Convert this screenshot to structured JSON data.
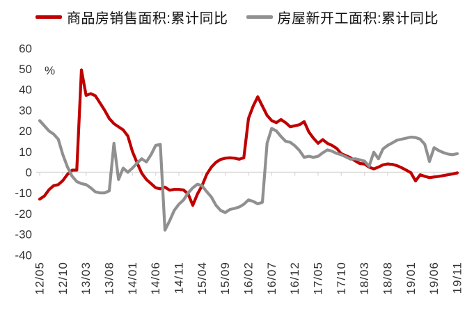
{
  "legend": [
    {
      "label": "商品房销售面积:累计同比",
      "color": "#c00000"
    },
    {
      "label": "房屋新开工面积:累计同比",
      "color": "#909090"
    }
  ],
  "y_axis": {
    "unit": "%",
    "ticks": [
      60,
      50,
      40,
      30,
      20,
      10,
      0,
      -10,
      -20,
      -30,
      -40
    ]
  },
  "x_axis": {
    "tick_labels": [
      "12/05",
      "12/10",
      "13/03",
      "13/08",
      "14/01",
      "14/06",
      "14/11",
      "15/04",
      "15/09",
      "16/02",
      "16/07",
      "16/12",
      "17/05",
      "17/10",
      "18/03",
      "18/08",
      "19/01",
      "19/06",
      "19/11"
    ]
  },
  "style": {
    "axis_line_color": "#d9d9d9",
    "label_color": "#333333",
    "background": "#ffffff"
  },
  "chart_data": {
    "type": "line",
    "title": "",
    "xlabel": "",
    "ylabel": "%",
    "ylim": [
      -40,
      60
    ],
    "grid": "zero-line-only",
    "legend_position": "top",
    "x": [
      "12/05",
      "12/06",
      "12/07",
      "12/08",
      "12/09",
      "12/10",
      "12/11",
      "12/12",
      "13/01",
      "13/02",
      "13/03",
      "13/04",
      "13/05",
      "13/06",
      "13/07",
      "13/08",
      "13/09",
      "13/10",
      "13/11",
      "13/12",
      "14/01",
      "14/02",
      "14/03",
      "14/04",
      "14/05",
      "14/06",
      "14/07",
      "14/08",
      "14/09",
      "14/10",
      "14/11",
      "14/12",
      "15/01",
      "15/02",
      "15/03",
      "15/04",
      "15/05",
      "15/06",
      "15/07",
      "15/08",
      "15/09",
      "15/10",
      "15/11",
      "15/12",
      "16/01",
      "16/02",
      "16/03",
      "16/04",
      "16/05",
      "16/06",
      "16/07",
      "16/08",
      "16/09",
      "16/10",
      "16/11",
      "16/12",
      "17/01",
      "17/02",
      "17/03",
      "17/04",
      "17/05",
      "17/06",
      "17/07",
      "17/08",
      "17/09",
      "17/10",
      "17/11",
      "17/12",
      "18/01",
      "18/02",
      "18/03",
      "18/04",
      "18/05",
      "18/06",
      "18/07",
      "18/08",
      "18/09",
      "18/10",
      "18/11",
      "18/12",
      "19/01",
      "19/02",
      "19/03",
      "19/04",
      "19/05",
      "19/06",
      "19/07",
      "19/08",
      "19/09",
      "19/10",
      "19/11"
    ],
    "series": [
      {
        "name": "商品房销售面积:累计同比",
        "color": "#c00000",
        "values": [
          -13,
          -11.5,
          -8.5,
          -6.5,
          -6,
          -4,
          -1,
          1,
          1,
          49.5,
          37.2,
          38,
          37,
          33.5,
          30,
          26,
          23.5,
          22,
          20.5,
          17.5,
          10,
          4.5,
          -0.5,
          -3.5,
          -5.5,
          -7.5,
          -8,
          -7.2,
          -8.7,
          -8.3,
          -8.3,
          -8.6,
          -10.5,
          -16,
          -10.5,
          -6.5,
          -1,
          2.5,
          4.8,
          6.2,
          6.8,
          7,
          6.8,
          6.3,
          7,
          26,
          32,
          36.5,
          32,
          27.5,
          25,
          24,
          25.5,
          24,
          22,
          22.5,
          23,
          24.5,
          19.5,
          16.5,
          14,
          15.8,
          14,
          13,
          11.5,
          9,
          8,
          7,
          5.5,
          4.2,
          4,
          2.5,
          1.6,
          2.5,
          3.6,
          4,
          3.8,
          3.2,
          2.2,
          1,
          -0.2,
          -4.2,
          -1.2,
          -2,
          -2.6,
          -2.3,
          -2,
          -1.6,
          -1.2,
          -0.8,
          -0.3
        ]
      },
      {
        "name": "房屋新开工面积:累计同比",
        "color": "#909090",
        "values": [
          25,
          22.5,
          20,
          18.5,
          16,
          8.5,
          2.5,
          -2,
          -4.5,
          -5.5,
          -6,
          -7.5,
          -9.5,
          -10,
          -10,
          -9,
          14,
          -3.5,
          2,
          0,
          2,
          4.5,
          6.5,
          5,
          8.5,
          13,
          13.5,
          -28,
          -23.5,
          -18.5,
          -15.5,
          -13.4,
          -10,
          -7.5,
          -5.8,
          -6.5,
          -9.4,
          -12,
          -16,
          -18.5,
          -19.5,
          -18,
          -17.5,
          -16.8,
          -15.5,
          -13.4,
          -14.1,
          -15.3,
          -14.5,
          14,
          21.2,
          20,
          17.3,
          15,
          14.5,
          12.8,
          10.5,
          7.2,
          7.7,
          7.2,
          7.7,
          9.4,
          10.8,
          10.2,
          9.1,
          8.5,
          7.4,
          6.3,
          6.5,
          6,
          5.4,
          2.9,
          9.7,
          6.5,
          11.3,
          13,
          14.2,
          15.5,
          16,
          16.5,
          17,
          16.8,
          16,
          13.5,
          5.2,
          11.9,
          10.5,
          9.5,
          8.8,
          8.5,
          9
        ]
      }
    ]
  }
}
